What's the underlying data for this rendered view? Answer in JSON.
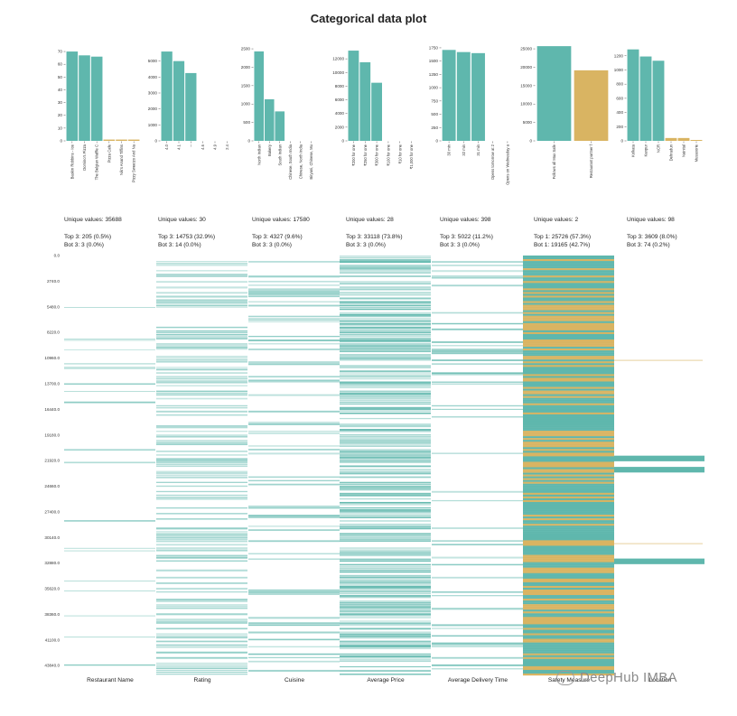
{
  "title": "Categorical data plot",
  "colors": {
    "primary": "#5fb7ad",
    "secondary": "#d9b462",
    "axis": "#333333"
  },
  "chart_data": {
    "type": "bar",
    "title": "Categorical data plot",
    "subplots": [
      {
        "column": "Restaurant Name",
        "categories": [
          "Baskin Robbins - Ice",
          "Domino's Pizza",
          "The Belgian Waffle C",
          "Pizza Cafe",
          "Nik's Anand Tiffins",
          "Pizzy Sweetzo And Na"
        ],
        "values": [
          70,
          67,
          66,
          1,
          1,
          1
        ],
        "ylim": [
          0,
          75
        ],
        "yticks": [
          0,
          10,
          20,
          30,
          40,
          50,
          60,
          70
        ],
        "highlight_secondary": [
          3,
          4,
          5
        ]
      },
      {
        "column": "Rating",
        "categories": [
          "4.0",
          "4.1",
          "--",
          "4.6",
          "4.9",
          "2.4"
        ],
        "values": [
          5600,
          5000,
          4250,
          0,
          0,
          0
        ],
        "ylim": [
          0,
          6000
        ],
        "yticks": [
          0,
          1000,
          2000,
          3000,
          4000,
          5000
        ],
        "highlight_secondary": []
      },
      {
        "column": "Cuisine",
        "categories": [
          "North Indian",
          "Bakery",
          "South Indian",
          "Chinese, South India",
          "Chinese, North India",
          "Biryani, Chinese, Mu"
        ],
        "values": [
          2430,
          1130,
          800,
          0,
          0,
          0
        ],
        "ylim": [
          0,
          2600
        ],
        "yticks": [
          0,
          500,
          1000,
          1500,
          2000,
          2500
        ],
        "highlight_secondary": []
      },
      {
        "column": "Average Price",
        "categories": [
          "₹200 for one",
          "₹250 for one",
          "₹300 for one",
          "₹100 for one",
          "₹10 for one",
          "₹1,000 for one"
        ],
        "values": [
          13200,
          11500,
          8500,
          0,
          0,
          0
        ],
        "ylim": [
          0,
          14000
        ],
        "yticks": [
          0,
          2000,
          4000,
          6000,
          8000,
          10000,
          12000
        ],
        "highlight_secondary": []
      },
      {
        "column": "Average Delivery Time",
        "categories": [
          "30 min",
          "32 min",
          "31 min",
          "Opens tomorrow at 2",
          "Opens on Wednesday a"
        ],
        "values": [
          1710,
          1670,
          1650,
          0,
          0
        ],
        "ylim": [
          0,
          1800
        ],
        "yticks": [
          0,
          250,
          500,
          750,
          1000,
          1250,
          1500,
          1750
        ],
        "highlight_secondary": []
      },
      {
        "column": "Safety Measure",
        "categories": [
          "Follows all Max Safe",
          "Restaurant partner f"
        ],
        "values": [
          25726,
          19165
        ],
        "ylim": [
          0,
          26000
        ],
        "yticks": [
          0,
          5000,
          10000,
          15000,
          20000,
          25000
        ],
        "highlight_secondary": [
          1
        ]
      },
      {
        "column": "Location",
        "categories": [
          "Kolkata",
          "Kanpur",
          "NCR",
          "Dehradun",
          "Nainital",
          "Mussoorie"
        ],
        "values": [
          1290,
          1190,
          1130,
          40,
          40,
          10
        ],
        "ylim": [
          0,
          1350
        ],
        "yticks": [
          0,
          200,
          400,
          600,
          800,
          1000,
          1200
        ],
        "highlight_secondary": [
          3,
          4,
          5
        ]
      }
    ],
    "stats": [
      {
        "unique": "Unique values: 35688",
        "top": "Top 3: 205 (0.5%)",
        "bot": "Bot 3: 3 (0.0%)"
      },
      {
        "unique": "Unique values: 30",
        "top": "Top 3: 14753 (32.9%)",
        "bot": "Bot 3: 14 (0.0%)"
      },
      {
        "unique": "Unique values: 17580",
        "top": "Top 3: 4327 (9.6%)",
        "bot": "Bot 3: 3 (0.0%)"
      },
      {
        "unique": "Unique values: 28",
        "top": "Top 3: 33118 (73.8%)",
        "bot": "Bot 3: 3 (0.0%)"
      },
      {
        "unique": "Unique values: 398",
        "top": "Top 3: 5022 (11.2%)",
        "bot": "Bot 3: 3 (0.0%)"
      },
      {
        "unique": "Unique values: 2",
        "top": "Top 1: 25726 (57.3%)",
        "bot": "Bot 1: 19165 (42.7%)"
      },
      {
        "unique": "Unique values: 98",
        "top": "Top 3: 3609 (8.0%)",
        "bot": "Bot 3: 74 (0.2%)"
      }
    ],
    "row_axis": {
      "ticks": [
        "0.0",
        "2740.0",
        "5480.0",
        "8220.0",
        "10960.0",
        "13700.0",
        "16440.0",
        "19180.0",
        "21920.0",
        "24660.0",
        "27400.0",
        "30140.0",
        "32880.0",
        "35620.0",
        "38360.0",
        "41100.0",
        "43840.0"
      ],
      "ylim": [
        0,
        44891
      ]
    },
    "strip_columns": [
      {
        "label": "Restaurant Name",
        "density": 0.03,
        "secondary": 0.0,
        "tone": 0.85
      },
      {
        "label": "Rating",
        "density": 0.55,
        "secondary": 0.0,
        "tone": 0.55
      },
      {
        "label": "Cuisine",
        "density": 0.22,
        "secondary": 0.0,
        "tone": 0.7
      },
      {
        "label": "Average Price",
        "density": 0.78,
        "secondary": 0.0,
        "tone": 0.95
      },
      {
        "label": "Average Delivery Time",
        "density": 0.18,
        "secondary": 0.0,
        "tone": 0.8
      },
      {
        "label": "Safety Measure",
        "density": 1.0,
        "secondary": 0.43,
        "tone": 1.0
      },
      {
        "label": "Location",
        "density": 0.0,
        "secondary": 0.0,
        "tone": 1.0
      }
    ],
    "location_blocks": [
      {
        "from": 21400,
        "to": 22000
      },
      {
        "from": 22600,
        "to": 23200
      },
      {
        "from": 32400,
        "to": 33000
      }
    ]
  },
  "watermark": "DeepHub IMBA"
}
